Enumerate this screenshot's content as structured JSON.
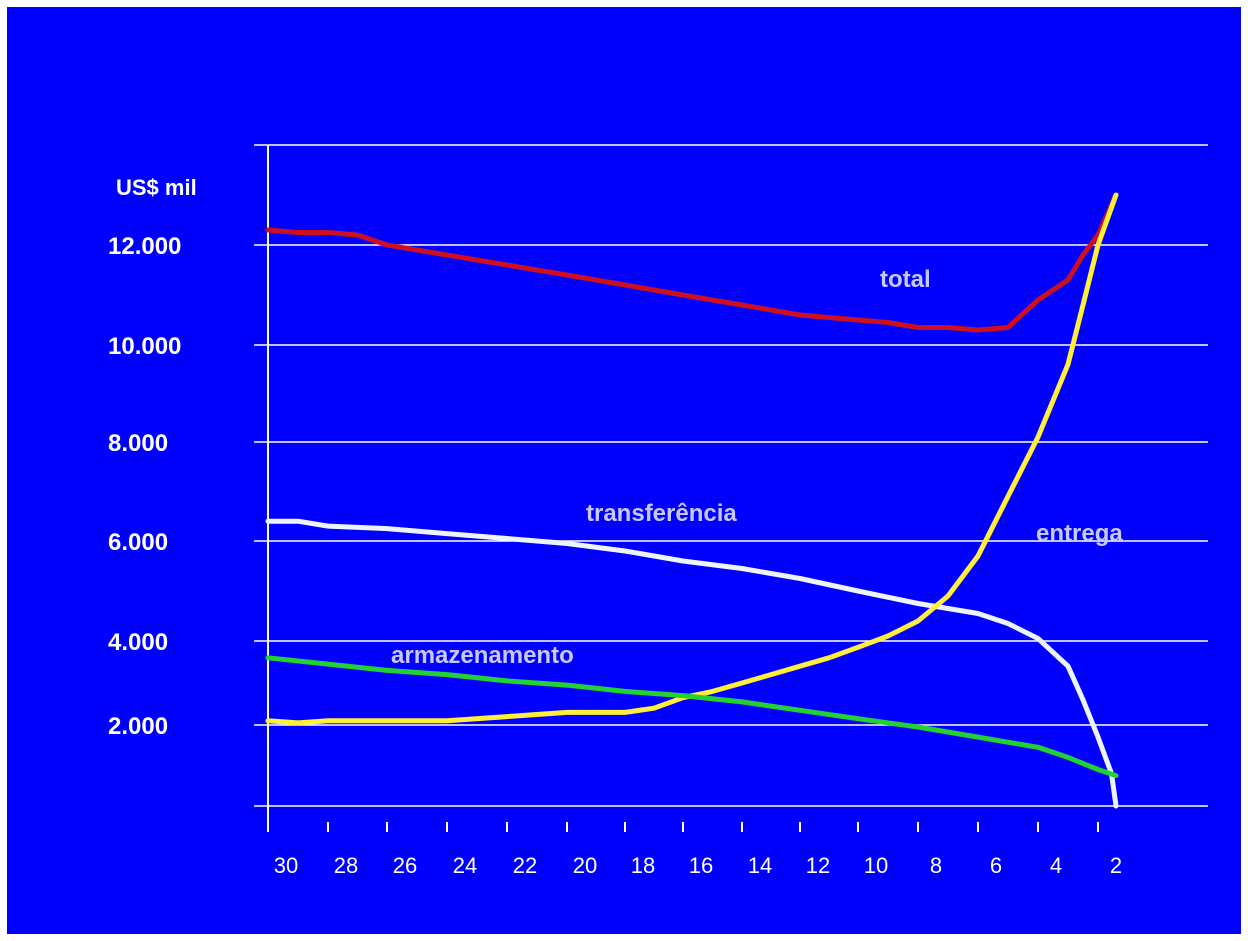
{
  "colors": {
    "background": "#0000ff",
    "frame": "#ffffff",
    "axis": "#ffffff",
    "grid": "#ffffff",
    "text": "#ffffff",
    "series_label": "#c8c8ff"
  },
  "chart_data": {
    "type": "line",
    "ylabel": "US$ mil",
    "xlim": [
      30,
      2
    ],
    "ylim": [
      0,
      13000
    ],
    "x_ticks": [
      30,
      28,
      26,
      24,
      22,
      20,
      18,
      16,
      14,
      12,
      10,
      8,
      6,
      4,
      2
    ],
    "x_tick_labels": [
      "30",
      "28",
      "26",
      "24",
      "22",
      "20",
      "18",
      "16",
      "14",
      "12",
      "10",
      "8",
      "6",
      "4",
      "2"
    ],
    "y_ticks": [
      2000,
      4000,
      6000,
      8000,
      10000,
      12000
    ],
    "y_tick_labels": [
      "2.000",
      "4.000",
      "6.000",
      "8.000",
      "10.000",
      "12.000"
    ],
    "grid": true,
    "series": [
      {
        "name": "total",
        "color": "#cc1020",
        "points": [
          [
            30,
            12300
          ],
          [
            29,
            12250
          ],
          [
            28,
            12250
          ],
          [
            27,
            12200
          ],
          [
            26,
            12000
          ],
          [
            24,
            11800
          ],
          [
            22,
            11600
          ],
          [
            20,
            11400
          ],
          [
            18,
            11200
          ],
          [
            16,
            11000
          ],
          [
            14,
            10800
          ],
          [
            12,
            10600
          ],
          [
            10,
            10500
          ],
          [
            9,
            10450
          ],
          [
            8,
            10350
          ],
          [
            7,
            10350
          ],
          [
            6,
            10300
          ],
          [
            5,
            10350
          ],
          [
            4,
            10900
          ],
          [
            3,
            11300
          ],
          [
            2.5,
            11800
          ],
          [
            2,
            12200
          ],
          [
            1.6,
            13000
          ]
        ]
      },
      {
        "name": "transferência",
        "color": "#eef4ff",
        "points": [
          [
            30,
            6400
          ],
          [
            29,
            6400
          ],
          [
            28,
            6300
          ],
          [
            26,
            6250
          ],
          [
            24,
            6150
          ],
          [
            22,
            6050
          ],
          [
            20,
            5950
          ],
          [
            18,
            5800
          ],
          [
            16,
            5600
          ],
          [
            14,
            5450
          ],
          [
            12,
            5250
          ],
          [
            10,
            5000
          ],
          [
            8,
            4750
          ],
          [
            6,
            4550
          ],
          [
            5,
            4350
          ],
          [
            4,
            4050
          ],
          [
            3,
            3400
          ],
          [
            2.5,
            2600
          ],
          [
            2,
            1700
          ],
          [
            1.7,
            800
          ],
          [
            1.6,
            0
          ]
        ]
      },
      {
        "name": "entrega",
        "color": "#ffef3a",
        "points": [
          [
            30,
            2100
          ],
          [
            29,
            2050
          ],
          [
            28,
            2100
          ],
          [
            26,
            2100
          ],
          [
            24,
            2100
          ],
          [
            22,
            2200
          ],
          [
            20,
            2300
          ],
          [
            18,
            2300
          ],
          [
            17,
            2400
          ],
          [
            16,
            2650
          ],
          [
            15,
            2800
          ],
          [
            14,
            3000
          ],
          [
            13,
            3200
          ],
          [
            12,
            3400
          ],
          [
            11,
            3600
          ],
          [
            10,
            3850
          ],
          [
            9,
            4100
          ],
          [
            8,
            4400
          ],
          [
            7,
            4900
          ],
          [
            6,
            5700
          ],
          [
            5,
            6900
          ],
          [
            4,
            8100
          ],
          [
            3,
            9600
          ],
          [
            2.5,
            10800
          ],
          [
            2,
            12000
          ],
          [
            1.6,
            13000
          ]
        ]
      },
      {
        "name": "armazenamento",
        "color": "#22d232",
        "points": [
          [
            30,
            3600
          ],
          [
            28,
            3450
          ],
          [
            26,
            3300
          ],
          [
            24,
            3200
          ],
          [
            22,
            3050
          ],
          [
            20,
            2950
          ],
          [
            18,
            2800
          ],
          [
            16,
            2700
          ],
          [
            14,
            2550
          ],
          [
            12,
            2350
          ],
          [
            10,
            2150
          ],
          [
            8,
            1950
          ],
          [
            6,
            1700
          ],
          [
            4,
            1450
          ],
          [
            3,
            1200
          ],
          [
            2,
            900
          ],
          [
            1.6,
            750
          ]
        ]
      }
    ]
  }
}
